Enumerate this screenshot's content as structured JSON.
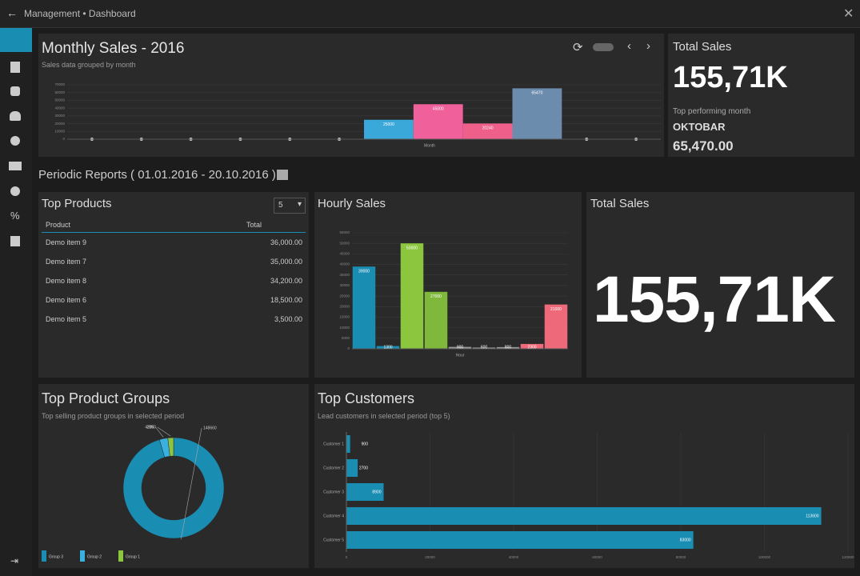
{
  "header": {
    "breadcrumb": "Management • Dashboard"
  },
  "monthly_sales": {
    "type": "bar",
    "title": "Monthly Sales - 2016",
    "subtitle": "Sales data grouped by month",
    "x_label": "Month",
    "values": [
      0,
      0,
      0,
      0,
      0,
      0,
      25000,
      45000,
      20240,
      65470,
      0,
      0
    ],
    "colors": [
      "#3aa8d8",
      "#3aa8d8",
      "#3aa8d8",
      "#3aa8d8",
      "#3aa8d8",
      "#3aa8d8",
      "#3aa8d8",
      "#f0609a",
      "#ee5f8a",
      "#6c8cad",
      "#3aa8d8",
      "#3aa8d8"
    ],
    "ylim": [
      0,
      70000
    ],
    "yticks": [
      0,
      10000,
      20000,
      30000,
      40000,
      50000,
      60000,
      70000
    ],
    "grid": true
  },
  "total_sales_card": {
    "title": "Total Sales",
    "value": "155,71K",
    "caption": "Top performing month",
    "month": "OKTOBAR",
    "month_value": "65,470.00"
  },
  "periodic_reports": {
    "title": "Periodic Reports ( 01.01.2016 - 20.10.2016 )"
  },
  "top_products": {
    "title": "Top Products",
    "count": "5",
    "columns": [
      "Product",
      "Total"
    ],
    "rows": [
      [
        "Demo item 9",
        "36,000.00"
      ],
      [
        "Demo item 7",
        "35,000.00"
      ],
      [
        "Demo item 8",
        "34,200.00"
      ],
      [
        "Demo item 6",
        "18,500.00"
      ],
      [
        "Demo item 5",
        "3,500.00"
      ]
    ]
  },
  "hourly_sales": {
    "type": "bar",
    "title": "Hourly Sales",
    "x_label": "Hour",
    "values": [
      39000,
      1300,
      50000,
      27000,
      900,
      600,
      800,
      2300,
      21000
    ],
    "colors": [
      "#1a8db3",
      "#1a8db3",
      "#8cc63f",
      "#7fb83a",
      "#9a9a9a",
      "#9a9a9a",
      "#9a9a9a",
      "#ee6a7a",
      "#ee6a7a"
    ],
    "ylim": [
      0,
      55000
    ],
    "yticks": [
      0,
      5000,
      10000,
      15000,
      20000,
      25000,
      30000,
      35000,
      40000,
      45000,
      50000,
      55000
    ],
    "grid": true
  },
  "total_sales_big": {
    "title": "Total Sales",
    "value": "155,71K"
  },
  "top_product_groups": {
    "type": "pie",
    "title": "Top Product Groups",
    "subtitle": "Top selling product groups in selected period",
    "categories": [
      "Group 3",
      "Group 2",
      "Group 1"
    ],
    "values": [
      148660,
      4200,
      2850
    ],
    "colors": [
      "#1a8db3",
      "#3ab0e0",
      "#8cc63f"
    ]
  },
  "top_customers": {
    "type": "hbar",
    "title": "Top Customers",
    "subtitle": "Lead customers in selected period (top 5)",
    "categories": [
      "Customer 1",
      "Customer 2",
      "Customer 3",
      "Customer 4",
      "Customer 5"
    ],
    "values": [
      900,
      2700,
      8900,
      113600,
      83000
    ],
    "color": "#1a8db3",
    "xlim": [
      0,
      120000
    ],
    "xticks": [
      0,
      20000,
      40000,
      60000,
      80000,
      100000,
      120000
    ],
    "grid": true
  }
}
